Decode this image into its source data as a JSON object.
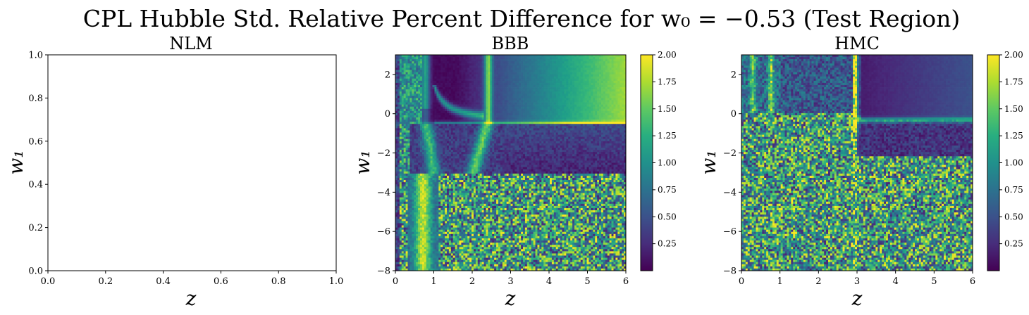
{
  "figure": {
    "title": "CPL Hubble Std. Relative Percent Difference for w₀ = −0.53 (Test Region)"
  },
  "chart_data": [
    {
      "type": "heatmap",
      "panel": "NLM",
      "title": "NLM",
      "xlabel": "z",
      "ylabel": "w₁",
      "xlim": [
        0.0,
        1.0
      ],
      "ylim": [
        0.0,
        1.0
      ],
      "xticks": [
        "0.0",
        "0.2",
        "0.4",
        "0.6",
        "0.8",
        "1.0"
      ],
      "yticks": [
        "0.0",
        "0.2",
        "0.4",
        "0.6",
        "0.8",
        "1.0"
      ],
      "empty": true
    },
    {
      "type": "heatmap",
      "panel": "BBB",
      "title": "BBB",
      "xlabel": "z",
      "ylabel": "w₁",
      "xlim": [
        0,
        6
      ],
      "ylim": [
        -8,
        3
      ],
      "xticks": [
        "0",
        "1",
        "2",
        "3",
        "4",
        "5",
        "6"
      ],
      "yticks": [
        "−8",
        "−6",
        "−4",
        "−2",
        "0",
        "2"
      ],
      "colorbar": {
        "range": [
          0.0,
          2.0
        ],
        "colormap": "viridis",
        "ticks": [
          "0.25",
          "0.50",
          "0.75",
          "1.00",
          "1.25",
          "1.50",
          "1.75",
          "2.00"
        ]
      },
      "features": {
        "vertical_bands_z": [
          0.2,
          0.75,
          2.4
        ],
        "horizontal_band_w1": -0.45,
        "noisy_region": "w1 below about -3 and z > 1"
      }
    },
    {
      "type": "heatmap",
      "panel": "HMC",
      "title": "HMC",
      "xlabel": "z",
      "ylabel": "w₁",
      "xlim": [
        0,
        6
      ],
      "ylim": [
        -8,
        3
      ],
      "xticks": [
        "0",
        "1",
        "2",
        "3",
        "4",
        "5",
        "6"
      ],
      "yticks": [
        "−8",
        "−6",
        "−4",
        "−2",
        "0",
        "2"
      ],
      "colorbar": {
        "range": [
          0.0,
          2.0
        ],
        "colormap": "viridis",
        "ticks": [
          "0.25",
          "0.50",
          "0.75",
          "1.00",
          "1.25",
          "1.50",
          "1.75",
          "2.00"
        ]
      },
      "features": {
        "vertical_bands_z": [
          0.3,
          0.75,
          2.9
        ],
        "horizontal_band_w1": -0.4,
        "noisy_region": "most of the domain except upper right"
      }
    }
  ]
}
